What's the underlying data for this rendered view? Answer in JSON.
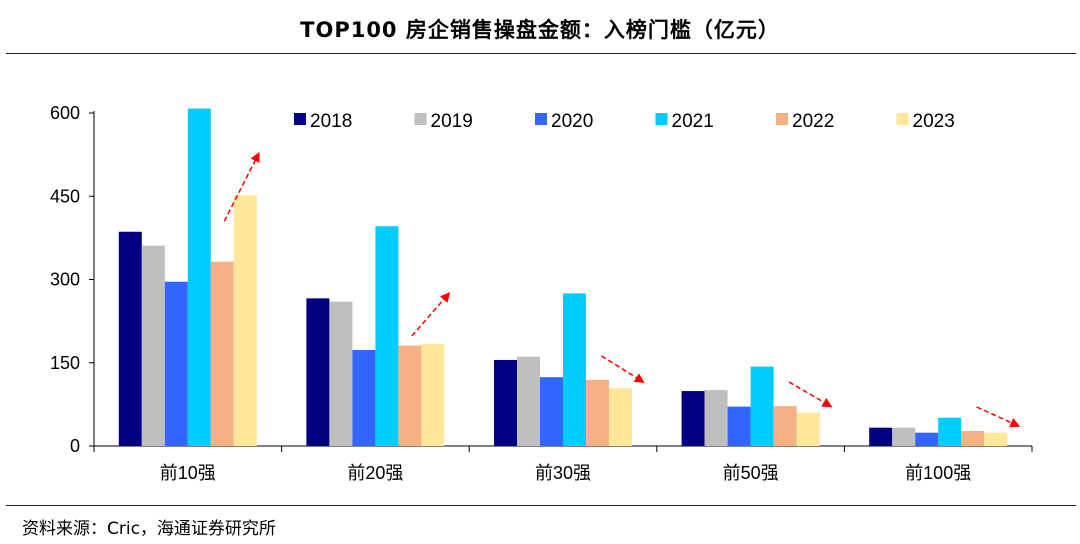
{
  "title": "TOP100 房企销售操盘金额：入榜门槛（亿元）",
  "source": "资料来源：Cric，海通证券研究所",
  "chart_data": {
    "type": "bar",
    "title": "TOP100 房企销售操盘金额：入榜门槛（亿元）",
    "xlabel": "",
    "ylabel": "",
    "categories": [
      "前10强",
      "前20强",
      "前30强",
      "前50强",
      "前100强"
    ],
    "ylim": [
      0,
      600
    ],
    "yticks": [
      "0",
      "150",
      "300",
      "450",
      "600"
    ],
    "ytick_values": [
      0,
      150,
      300,
      450,
      600
    ],
    "legend_position": "top",
    "grid": false,
    "series": [
      {
        "name": "2018",
        "color": "#000080",
        "values": [
          386,
          266,
          155,
          99,
          33
        ]
      },
      {
        "name": "2019",
        "color": "#bfbfbf",
        "values": [
          361,
          260,
          161,
          101,
          33
        ]
      },
      {
        "name": "2020",
        "color": "#3366ff",
        "values": [
          296,
          173,
          124,
          71,
          24
        ]
      },
      {
        "name": "2021",
        "color": "#00ccff",
        "values": [
          608,
          396,
          275,
          143,
          51
        ]
      },
      {
        "name": "2022",
        "color": "#f4b183",
        "values": [
          332,
          181,
          119,
          72,
          27
        ]
      },
      {
        "name": "2023",
        "color": "#ffe699",
        "values": [
          452,
          184,
          104,
          60,
          24
        ]
      }
    ],
    "annotations": [
      {
        "type": "dashed-arrow",
        "color": "#ff0000",
        "category": "前10强",
        "direction": "up"
      },
      {
        "type": "dashed-arrow",
        "color": "#ff0000",
        "category": "前20强",
        "direction": "up"
      },
      {
        "type": "dashed-arrow",
        "color": "#ff0000",
        "category": "前30强",
        "direction": "down"
      },
      {
        "type": "dashed-arrow",
        "color": "#ff0000",
        "category": "前50强",
        "direction": "down"
      },
      {
        "type": "dashed-arrow",
        "color": "#ff0000",
        "category": "前100强",
        "direction": "down"
      }
    ]
  }
}
